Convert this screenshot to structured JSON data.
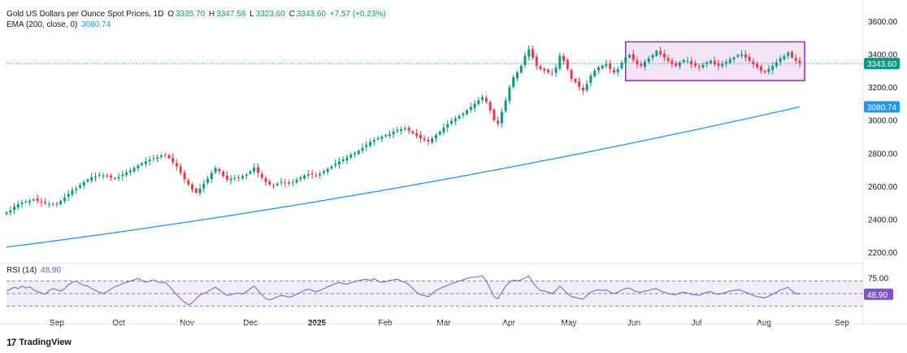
{
  "header": {
    "symbol": "Gold US Dollars per Ounce Spot Prices, 1D",
    "open_label": "O",
    "open": "3335.70",
    "high_label": "H",
    "high": "3347.58",
    "low_label": "L",
    "low": "3323.60",
    "close_label": "C",
    "close": "3343.60",
    "change": "+7.57 (+0.23%)",
    "ema_label": "EMA (200, close, 0)",
    "ema_value": "3080.74",
    "rsi_label": "RSI (14)",
    "rsi_value": "48.90"
  },
  "branding": {
    "logo_mark": "17",
    "logo_text": "TradingView"
  },
  "colors": {
    "up": "#089981",
    "down": "#f23645",
    "ema": "#2196f3",
    "rsi": "#7e57c2",
    "box": "#9c27b0"
  },
  "chart_data": [
    {
      "type": "candlestick",
      "title": "Gold US Dollars per Ounce Spot Prices, 1D",
      "y_axis_ticks": [
        2200,
        2400,
        2600,
        2800,
        3000,
        3200,
        3400,
        3600
      ],
      "ylim": [
        2160,
        3640
      ],
      "x_tick_labels": [
        "Sep",
        "Oct",
        "Nov",
        "Dec",
        "2025",
        "Feb",
        "Mar",
        "Apr",
        "May",
        "Jun",
        "Jul",
        "Aug",
        "Sep"
      ],
      "current_price": 3343.6,
      "current_price_label": "3343.60",
      "ema_current_label": "3080.74",
      "close_series": [
        2440,
        2452,
        2475,
        2490,
        2500,
        2506,
        2512,
        2520,
        2510,
        2502,
        2498,
        2492,
        2488,
        2495,
        2510,
        2530,
        2552,
        2575,
        2585,
        2605,
        2625,
        2640,
        2655,
        2660,
        2668,
        2665,
        2660,
        2652,
        2645,
        2655,
        2670,
        2682,
        2695,
        2710,
        2725,
        2738,
        2750,
        2760,
        2770,
        2775,
        2785,
        2790,
        2770,
        2745,
        2720,
        2680,
        2640,
        2610,
        2580,
        2560,
        2585,
        2615,
        2645,
        2680,
        2710,
        2690,
        2660,
        2640,
        2645,
        2648,
        2650,
        2660,
        2670,
        2690,
        2712,
        2680,
        2650,
        2625,
        2610,
        2605,
        2615,
        2625,
        2620,
        2615,
        2625,
        2640,
        2652,
        2665,
        2672,
        2670,
        2665,
        2675,
        2690,
        2705,
        2720,
        2735,
        2750,
        2762,
        2775,
        2790,
        2800,
        2815,
        2832,
        2850,
        2868,
        2880,
        2890,
        2900,
        2910,
        2915,
        2930,
        2940,
        2945,
        2950,
        2935,
        2920,
        2905,
        2890,
        2880,
        2870,
        2890,
        2910,
        2930,
        2955,
        2975,
        2995,
        3010,
        3025,
        3040,
        3060,
        3080,
        3100,
        3120,
        3140,
        3110,
        3060,
        3000,
        2980,
        3050,
        3120,
        3200,
        3260,
        3290,
        3330,
        3390,
        3430,
        3380,
        3330,
        3310,
        3300,
        3290,
        3285,
        3320,
        3390,
        3360,
        3310,
        3250,
        3230,
        3200,
        3180,
        3220,
        3270,
        3300,
        3320,
        3330,
        3340,
        3310,
        3290,
        3310,
        3350,
        3380,
        3395,
        3365,
        3340,
        3330,
        3355,
        3375,
        3395,
        3420,
        3400,
        3380,
        3360,
        3340,
        3330,
        3350,
        3365,
        3360,
        3340,
        3330,
        3320,
        3335,
        3350,
        3360,
        3340,
        3330,
        3340,
        3355,
        3370,
        3380,
        3395,
        3400,
        3380,
        3360,
        3340,
        3320,
        3300,
        3290,
        3310,
        3330,
        3350,
        3375,
        3390,
        3410,
        3380,
        3360,
        3343.6
      ],
      "ema_series": {
        "start": 2230,
        "end": 3080.74
      },
      "annotations": [
        {
          "type": "rectangle",
          "label": "consolidation-range",
          "y_from": 3240,
          "y_to": 3475
        }
      ]
    },
    {
      "type": "line",
      "title": "RSI (14)",
      "y_axis_ticks": [
        75
      ],
      "y_axis_tick_labels": [
        "75.00"
      ],
      "ylim": [
        20,
        85
      ],
      "current_value": 48.9,
      "current_value_label": "48.90",
      "series": [
        54,
        57,
        60,
        58,
        62,
        59,
        61,
        56,
        53,
        51,
        49,
        55,
        58,
        56,
        54,
        58,
        64,
        68,
        70,
        66,
        63,
        62,
        58,
        55,
        52,
        50,
        53,
        57,
        61,
        63,
        66,
        68,
        70,
        72,
        74,
        71,
        68,
        70,
        72,
        69,
        67,
        68,
        62,
        55,
        48,
        42,
        36,
        32,
        35,
        42,
        48,
        50,
        53,
        57,
        60,
        56,
        51,
        47,
        48,
        50,
        51,
        49,
        53,
        58,
        62,
        55,
        48,
        42,
        40,
        42,
        45,
        47,
        46,
        44,
        46,
        49,
        52,
        55,
        57,
        55,
        53,
        55,
        58,
        61,
        63,
        66,
        68,
        66,
        65,
        67,
        69,
        71,
        72,
        73,
        71,
        74,
        70,
        68,
        69,
        71,
        72,
        73,
        70,
        68,
        64,
        58,
        52,
        48,
        47,
        45,
        50,
        55,
        58,
        61,
        63,
        66,
        68,
        70,
        72,
        74,
        76,
        76,
        77,
        78,
        70,
        58,
        45,
        42,
        52,
        62,
        68,
        72,
        70,
        72,
        75,
        78,
        68,
        60,
        55,
        54,
        52,
        50,
        55,
        62,
        56,
        50,
        45,
        44,
        42,
        41,
        47,
        52,
        55,
        56,
        55,
        56,
        52,
        50,
        52,
        56,
        58,
        59,
        55,
        53,
        52,
        54,
        55,
        57,
        58,
        54,
        52,
        50,
        49,
        48,
        51,
        52,
        51,
        49,
        48,
        47,
        50,
        52,
        53,
        50,
        49,
        50,
        52,
        54,
        55,
        56,
        55,
        52,
        50,
        47,
        45,
        44,
        43,
        46,
        49,
        52,
        56,
        58,
        60,
        54,
        50,
        48.9
      ],
      "bands": {
        "upper": 70,
        "middle": 50,
        "lower": 30
      }
    }
  ]
}
